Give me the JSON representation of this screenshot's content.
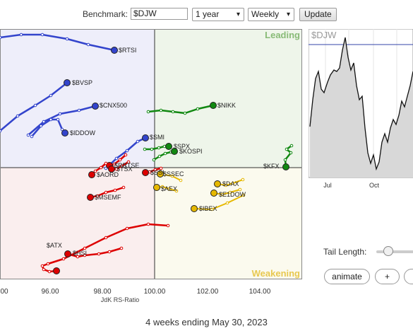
{
  "controls": {
    "benchmark_label": "Benchmark:",
    "benchmark_value": "$DJW",
    "period_value": "1 year",
    "frequency_value": "Weekly",
    "update_label": "Update"
  },
  "rrg": {
    "quadrants": {
      "leading": "Leading",
      "weakening": "Weakening"
    },
    "x_ticks": [
      "00",
      "96.00",
      "98.00",
      "100.00",
      "102.00",
      "104.00"
    ],
    "x_axis_label": "JdK RS-Ratio",
    "colors": {
      "blue": "#3344cc",
      "green": "#118811",
      "red": "#dd0000",
      "yellow": "#e6b800"
    },
    "tickers": [
      {
        "name": "$RTSI",
        "color": "blue"
      },
      {
        "name": "$BVSP",
        "color": "blue"
      },
      {
        "name": "$CNX500",
        "color": "blue"
      },
      {
        "name": "$IDDOW",
        "color": "blue"
      },
      {
        "name": "$SMI",
        "color": "blue"
      },
      {
        "name": "$NIKK",
        "color": "green"
      },
      {
        "name": "$SPX",
        "color": "green"
      },
      {
        "name": "$KOSPI",
        "color": "green"
      },
      {
        "name": "$KFX",
        "color": "green"
      },
      {
        "name": "$RRTSE",
        "color": "red"
      },
      {
        "name": "$TSX",
        "color": "red"
      },
      {
        "name": "$AORD",
        "color": "red"
      },
      {
        "name": "$SSI",
        "color": "red"
      },
      {
        "name": "$MSEMF",
        "color": "red"
      },
      {
        "name": "$ATX",
        "color": "red"
      },
      {
        "name": "$HSI",
        "color": "red"
      },
      {
        "name": "$SSEC",
        "color": "yellow"
      },
      {
        "name": "$AEX",
        "color": "yellow"
      },
      {
        "name": "$DAX",
        "color": "yellow"
      },
      {
        "name": "$E1DOW",
        "color": "yellow"
      },
      {
        "name": "$IBEX",
        "color": "yellow"
      }
    ]
  },
  "mini_chart": {
    "title": "$DJW",
    "x_ticks": [
      "Jul",
      "Oct"
    ]
  },
  "tail_length_label": "Tail Length:",
  "buttons": {
    "animate": "animate",
    "plus": "+"
  },
  "footer": "4 weeks ending May 30, 2023"
}
